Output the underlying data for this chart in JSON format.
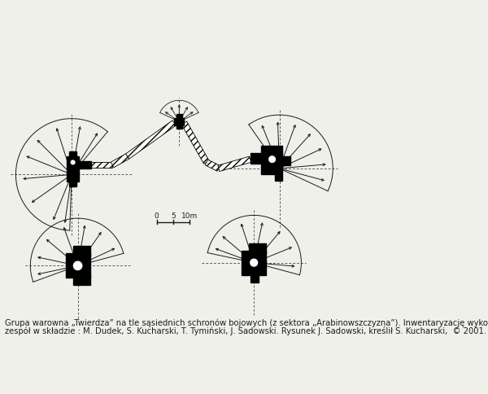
{
  "bg_color": "#f0f0eb",
  "line_color": "#1a1a1a",
  "fill_color": "#000000",
  "caption_line1": "Grupa warowna „Twierdza” na tle sąsiednich schronów bojowych (z sektora „Arabinowszczyzna”). Inwentaryzację wykonał",
  "caption_line2": "zespół w składzie : M. Dudek, S. Kucharski, T. Tymiński, J. Sadowski. Rysunek J. Sadowski, kreślił S. Kucharski,  © 2001.",
  "scale_label_0": "0",
  "scale_label_5": "5",
  "scale_label_10m": "10m",
  "caption_fontsize": 7.2,
  "scale_fontsize": 6.5
}
